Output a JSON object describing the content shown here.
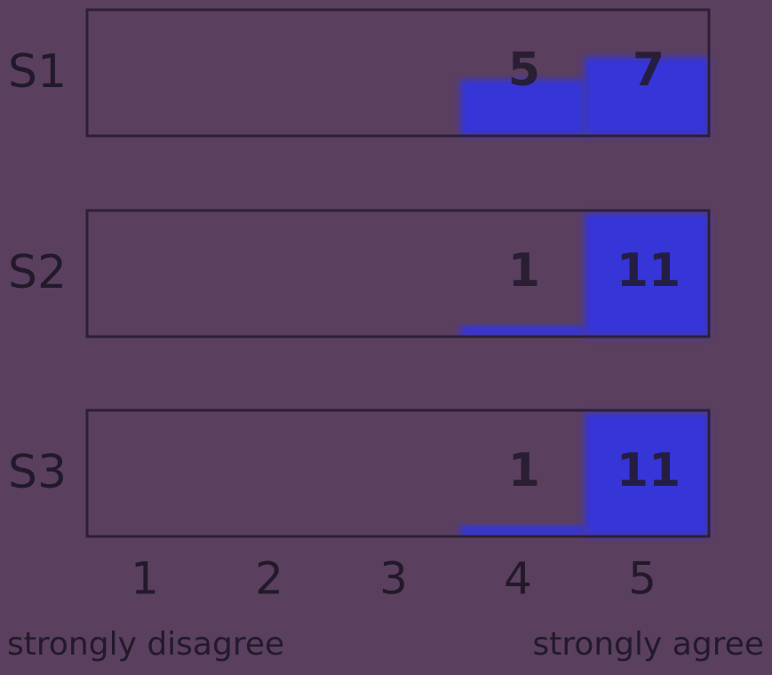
{
  "chart_data": {
    "type": "bar",
    "categories": [
      "1",
      "2",
      "3",
      "4",
      "5"
    ],
    "series": [
      {
        "name": "S1",
        "values": [
          0,
          0,
          0,
          5,
          7
        ]
      },
      {
        "name": "S2",
        "values": [
          0,
          0,
          0,
          1,
          11
        ]
      },
      {
        "name": "S3",
        "values": [
          0,
          0,
          0,
          1,
          11
        ]
      }
    ],
    "color": "#3535d8",
    "ylim": [
      0,
      11.2
    ],
    "annotations": [
      "strongly disagree",
      "strongly agree"
    ]
  }
}
